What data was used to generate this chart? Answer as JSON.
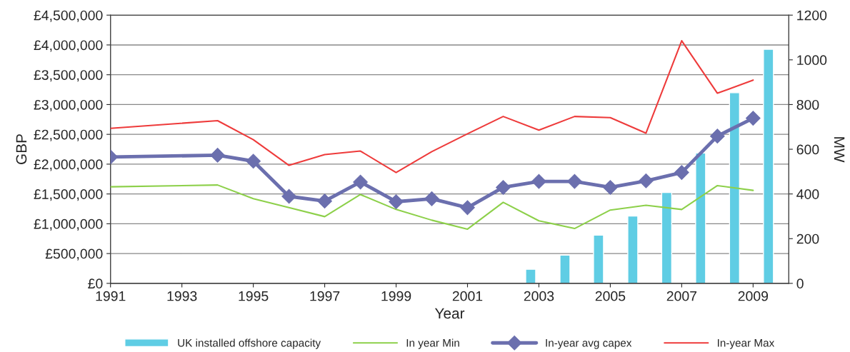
{
  "chart_data": {
    "type": "line",
    "xlabel": "Year",
    "ylabel": "GBP",
    "y2label": "MW",
    "xlim": [
      1991,
      2010
    ],
    "xticks": [
      1991,
      1993,
      1995,
      1997,
      1999,
      2001,
      2003,
      2005,
      2007,
      2009
    ],
    "ylim": [
      0,
      4500000
    ],
    "yticks": [
      {
        "value": 0,
        "label": "£0"
      },
      {
        "value": 500000,
        "label": "£500,000"
      },
      {
        "value": 1000000,
        "label": "£1,000,000"
      },
      {
        "value": 1500000,
        "label": "£1,500,000"
      },
      {
        "value": 2000000,
        "label": "£2,000,000"
      },
      {
        "value": 2500000,
        "label": "£2,500,000"
      },
      {
        "value": 3000000,
        "label": "£3,000,000"
      },
      {
        "value": 3500000,
        "label": "£3,500,000"
      },
      {
        "value": 4000000,
        "label": "£4,000,000"
      },
      {
        "value": 4500000,
        "label": "£4,500,000"
      }
    ],
    "y2lim": [
      0,
      1200
    ],
    "y2ticks": [
      0,
      200,
      400,
      600,
      800,
      1000,
      1200
    ],
    "grid": "y",
    "legend": "bottom",
    "series": [
      {
        "name": "UK installed offshore capacity",
        "type": "bar",
        "axis": "y2",
        "color": "#5fcde4",
        "x": [
          2002.77,
          2003.73,
          2004.67,
          2005.63,
          2006.58,
          2007.53,
          2008.48,
          2009.43
        ],
        "values": [
          63,
          126,
          216,
          301,
          407,
          583,
          853,
          1047
        ]
      },
      {
        "name": "In year Min",
        "color": "#8dd04a",
        "marker": "none",
        "x": [
          1991,
          1994,
          1995,
          1996,
          1997,
          1998,
          1999,
          2000,
          2001,
          2002,
          2003,
          2004,
          2005,
          2006,
          2007,
          2008,
          2009
        ],
        "values": [
          1620000,
          1650000,
          1420000,
          1270000,
          1120000,
          1490000,
          1240000,
          1060000,
          910000,
          1360000,
          1050000,
          920000,
          1230000,
          1310000,
          1240000,
          1640000,
          1560000
        ]
      },
      {
        "name": "In-year avg capex",
        "color": "#6b6fae",
        "marker": "diamond",
        "x": [
          1991,
          1994,
          1995,
          1996,
          1997,
          1998,
          1999,
          2000,
          2001,
          2002,
          2003,
          2004,
          2005,
          2006,
          2007,
          2008,
          2009
        ],
        "values": [
          2120000,
          2150000,
          2050000,
          1460000,
          1380000,
          1700000,
          1370000,
          1420000,
          1270000,
          1610000,
          1710000,
          1710000,
          1610000,
          1720000,
          1860000,
          2470000,
          2770000
        ]
      },
      {
        "name": "In-year Max",
        "color": "#ee3b3b",
        "marker": "none",
        "x": [
          1991,
          1994,
          1995,
          1996,
          1997,
          1998,
          1999,
          2000,
          2001,
          2002,
          2003,
          2004,
          2005,
          2006,
          2007,
          2008,
          2009
        ],
        "values": [
          2600000,
          2730000,
          2410000,
          1980000,
          2160000,
          2220000,
          1860000,
          2210000,
          2510000,
          2800000,
          2570000,
          2800000,
          2780000,
          2520000,
          4070000,
          3190000,
          3410000
        ]
      }
    ]
  }
}
